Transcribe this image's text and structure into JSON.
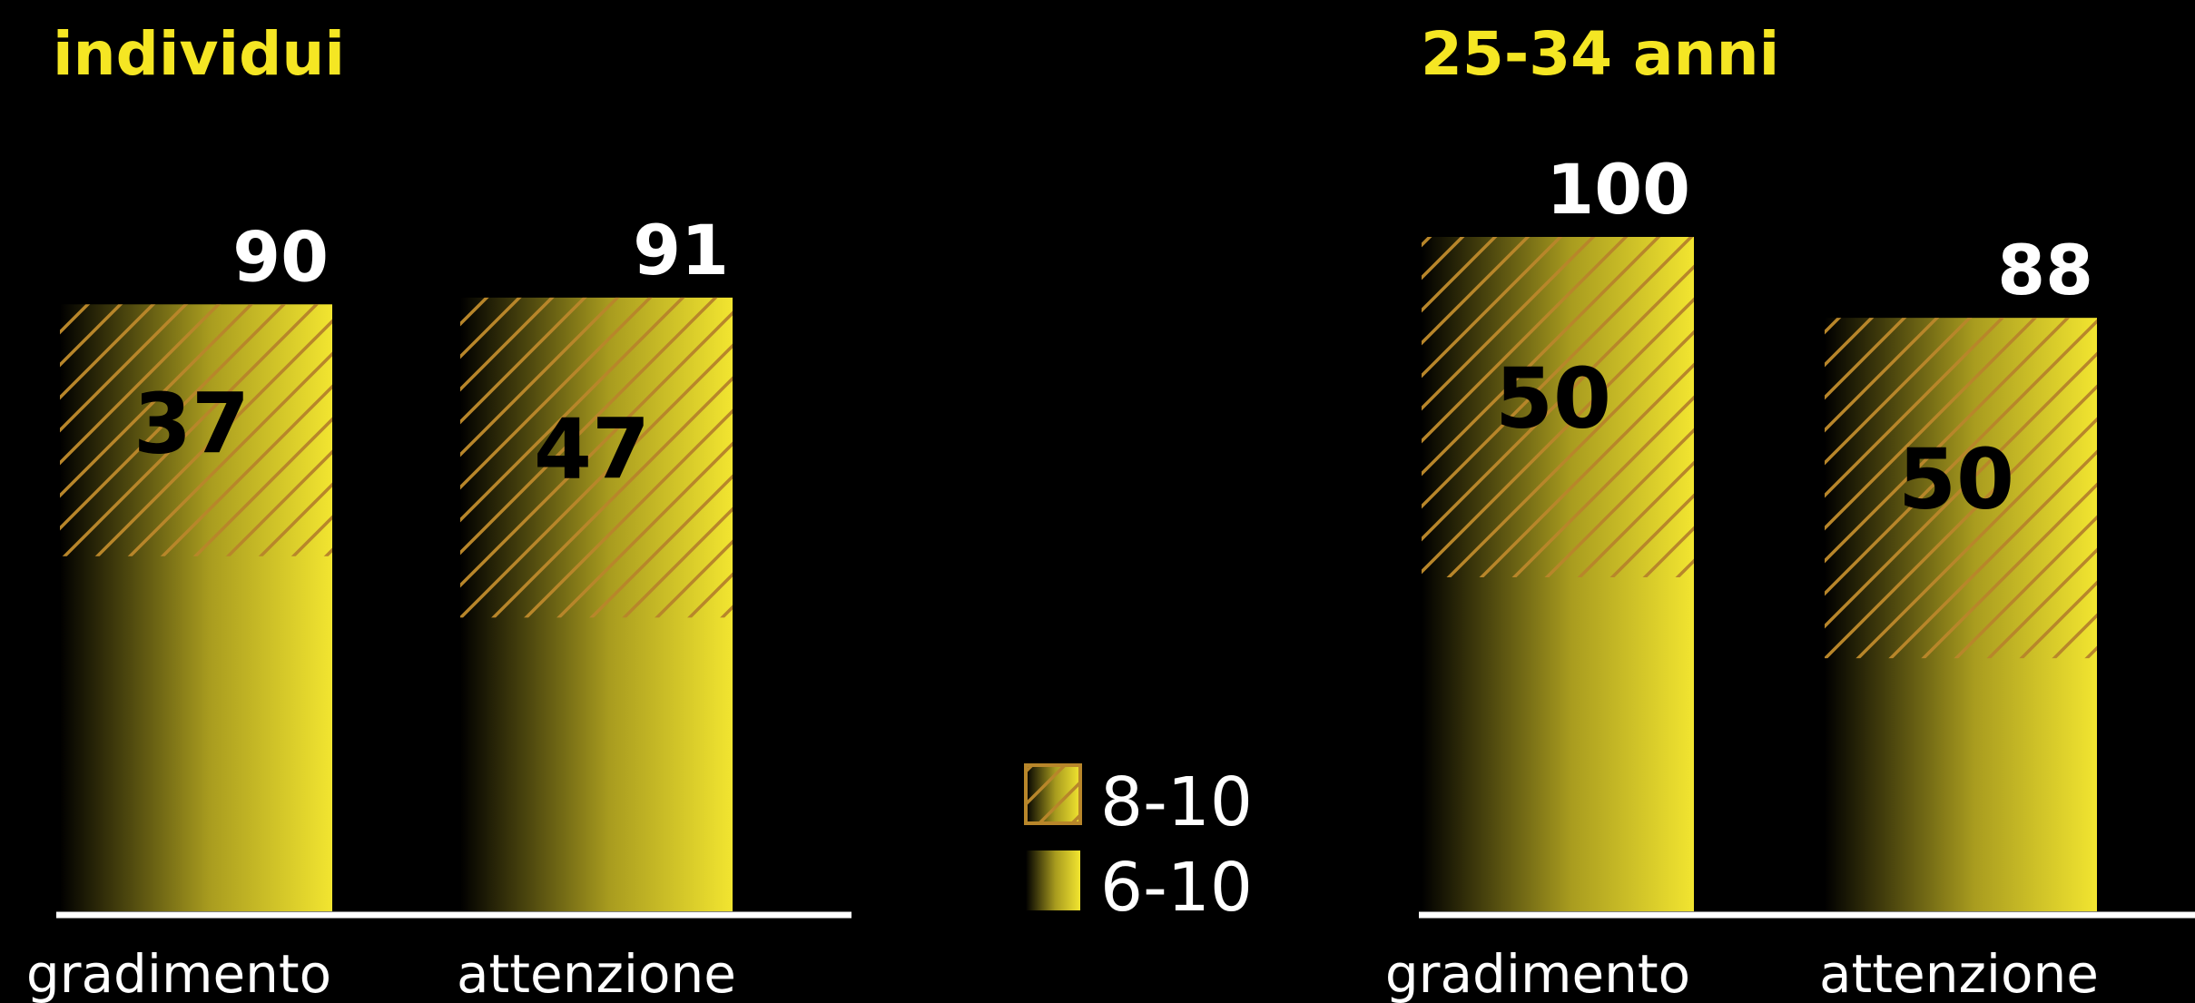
{
  "colors": {
    "background": "#000000",
    "bar": "#f2e530",
    "hatch": "#b8862a",
    "title": "#f5e623",
    "text": "#ffffff",
    "axis": "#ffffff"
  },
  "legend": {
    "items": [
      {
        "label": "8-10",
        "style": "hatched"
      },
      {
        "label": "6-10",
        "style": "solid"
      }
    ]
  },
  "chart_data": [
    {
      "type": "bar",
      "title": "individui",
      "categories": [
        "gradimento",
        "attenzione"
      ],
      "series": [
        {
          "name": "6-10",
          "values": [
            90,
            91
          ]
        },
        {
          "name": "8-10",
          "values": [
            37,
            47
          ]
        }
      ],
      "ylim": [
        0,
        100
      ]
    },
    {
      "type": "bar",
      "title": "25-34 anni",
      "categories": [
        "gradimento",
        "attenzione"
      ],
      "series": [
        {
          "name": "6-10",
          "values": [
            100,
            88
          ]
        },
        {
          "name": "8-10",
          "values": [
            50,
            50
          ]
        }
      ],
      "ylim": [
        0,
        100
      ]
    }
  ]
}
